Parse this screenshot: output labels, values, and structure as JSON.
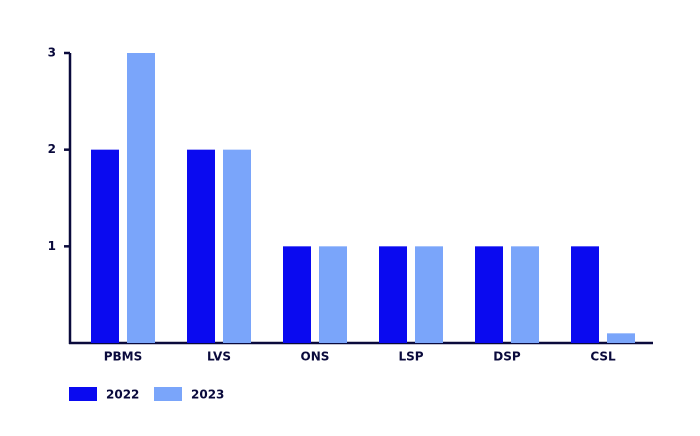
{
  "chart_data": {
    "type": "bar",
    "categories": [
      "PBMS",
      "LVS",
      "ONS",
      "LSP",
      "DSP",
      "CSL"
    ],
    "series": [
      {
        "name": "2022",
        "color": "#0a0af0",
        "values": [
          2,
          2,
          1,
          1,
          1,
          1
        ]
      },
      {
        "name": "2023",
        "color": "#7aa5fa",
        "values": [
          3,
          2,
          1,
          1,
          1,
          0.1
        ]
      }
    ],
    "ylim": [
      0,
      3
    ],
    "yticks": [
      1,
      2,
      3
    ]
  }
}
